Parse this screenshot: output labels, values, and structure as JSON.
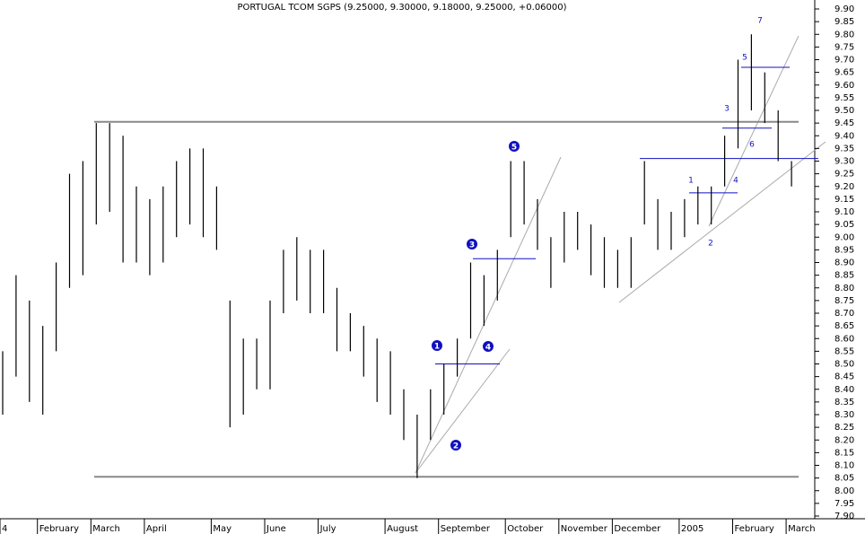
{
  "chart_data": {
    "type": "hlbar",
    "title": "PORTUGAL TCOM SGPS (9.25000, 9.30000, 9.18000, 9.25000, +0.06000)",
    "categories": [
      "4",
      null,
      null,
      "February",
      null,
      null,
      null,
      "March",
      null,
      null,
      null,
      "April",
      null,
      null,
      null,
      null,
      "May",
      null,
      null,
      null,
      "June",
      null,
      null,
      null,
      "July",
      null,
      null,
      null,
      null,
      "August",
      null,
      null,
      null,
      "September",
      null,
      null,
      null,
      null,
      "October",
      null,
      null,
      null,
      "November",
      null,
      null,
      null,
      "December",
      null,
      null,
      null,
      null,
      "2005",
      null,
      null,
      null,
      "February",
      null,
      null,
      null,
      "March"
    ],
    "high": [
      8.55,
      8.85,
      8.75,
      8.65,
      8.9,
      9.25,
      9.3,
      9.45,
      9.45,
      9.4,
      9.2,
      9.15,
      9.2,
      9.3,
      9.35,
      9.35,
      9.2,
      8.75,
      8.6,
      8.6,
      8.75,
      8.95,
      9.0,
      8.95,
      8.95,
      8.8,
      8.7,
      8.65,
      8.6,
      8.55,
      8.4,
      8.3,
      8.4,
      8.5,
      8.6,
      8.9,
      8.85,
      8.95,
      9.3,
      9.3,
      9.15,
      9.0,
      9.1,
      9.1,
      9.05,
      9.0,
      8.95,
      9.0,
      9.3,
      9.15,
      9.1,
      9.15,
      9.2,
      9.2,
      9.4,
      9.7,
      9.8,
      9.65,
      9.5,
      9.3
    ],
    "low": [
      8.3,
      8.45,
      8.35,
      8.3,
      8.55,
      8.8,
      8.85,
      9.05,
      9.1,
      8.9,
      8.9,
      8.85,
      8.9,
      9.0,
      9.05,
      9.0,
      8.95,
      8.25,
      8.3,
      8.4,
      8.4,
      8.7,
      8.75,
      8.7,
      8.7,
      8.55,
      8.55,
      8.45,
      8.35,
      8.3,
      8.2,
      8.05,
      8.2,
      8.3,
      8.45,
      8.6,
      8.65,
      8.75,
      9.0,
      9.05,
      8.95,
      8.8,
      8.9,
      8.95,
      8.85,
      8.8,
      8.8,
      8.8,
      9.05,
      8.95,
      8.95,
      9.0,
      9.05,
      9.05,
      9.2,
      9.35,
      9.5,
      9.45,
      9.3,
      9.2
    ],
    "hlines": [
      {
        "value": 9.455,
        "color": "#888888"
      },
      {
        "value": 8.055,
        "color": "#888888"
      },
      {
        "value": 8.5,
        "color": "#1010c0"
      },
      {
        "value": 8.915,
        "color": "#1010c0"
      },
      {
        "value": 9.31,
        "color": "#1010c0"
      },
      {
        "value": 9.175,
        "color": "#1010c0"
      },
      {
        "value": 9.43,
        "color": "#1010c0"
      },
      {
        "value": 9.67,
        "color": "#1010c0"
      }
    ],
    "annotations": [
      "1",
      "2",
      "3",
      "4",
      "5",
      "1",
      "2",
      "3",
      "4",
      "5",
      "6",
      "7"
    ],
    "color": "#000000",
    "ylim": [
      7.9,
      9.9
    ],
    "yticks": [
      {
        "value": 7.9,
        "label": "7.90"
      },
      {
        "value": 7.95,
        "label": "7.95"
      },
      {
        "value": 8.0,
        "label": "8.00"
      },
      {
        "value": 8.05,
        "label": "8.05"
      },
      {
        "value": 8.1,
        "label": "8.10"
      },
      {
        "value": 8.15,
        "label": "8.15"
      },
      {
        "value": 8.2,
        "label": "8.20"
      },
      {
        "value": 8.25,
        "label": "8.25"
      },
      {
        "value": 8.3,
        "label": "8.30"
      },
      {
        "value": 8.35,
        "label": "8.35"
      },
      {
        "value": 8.4,
        "label": "8.40"
      },
      {
        "value": 8.45,
        "label": "8.45"
      },
      {
        "value": 8.5,
        "label": "8.50"
      },
      {
        "value": 8.55,
        "label": "8.55"
      },
      {
        "value": 8.6,
        "label": "8.60"
      },
      {
        "value": 8.65,
        "label": "8.65"
      },
      {
        "value": 8.7,
        "label": "8.70"
      },
      {
        "value": 8.75,
        "label": "8.75"
      },
      {
        "value": 8.8,
        "label": "8.80"
      },
      {
        "value": 8.85,
        "label": "8.85"
      },
      {
        "value": 8.9,
        "label": "8.90"
      },
      {
        "value": 8.95,
        "label": "8.95"
      },
      {
        "value": 9.0,
        "label": "9.00"
      },
      {
        "value": 9.05,
        "label": "9.05"
      },
      {
        "value": 9.1,
        "label": "9.10"
      },
      {
        "value": 9.15,
        "label": "9.15"
      },
      {
        "value": 9.2,
        "label": "9.20"
      },
      {
        "value": 9.25,
        "label": "9.25"
      },
      {
        "value": 9.3,
        "label": "9.30"
      },
      {
        "value": 9.35,
        "label": "9.35"
      },
      {
        "value": 9.4,
        "label": "9.40"
      },
      {
        "value": 9.45,
        "label": "9.45"
      },
      {
        "value": 9.5,
        "label": "9.50"
      },
      {
        "value": 9.55,
        "label": "9.55"
      },
      {
        "value": 9.6,
        "label": "9.60"
      },
      {
        "value": 9.65,
        "label": "9.65"
      },
      {
        "value": 9.7,
        "label": "9.70"
      },
      {
        "value": 9.75,
        "label": "9.75"
      },
      {
        "value": 9.8,
        "label": "9.80"
      },
      {
        "value": 9.85,
        "label": "9.85"
      },
      {
        "value": 9.9,
        "label": "9.90"
      }
    ]
  }
}
